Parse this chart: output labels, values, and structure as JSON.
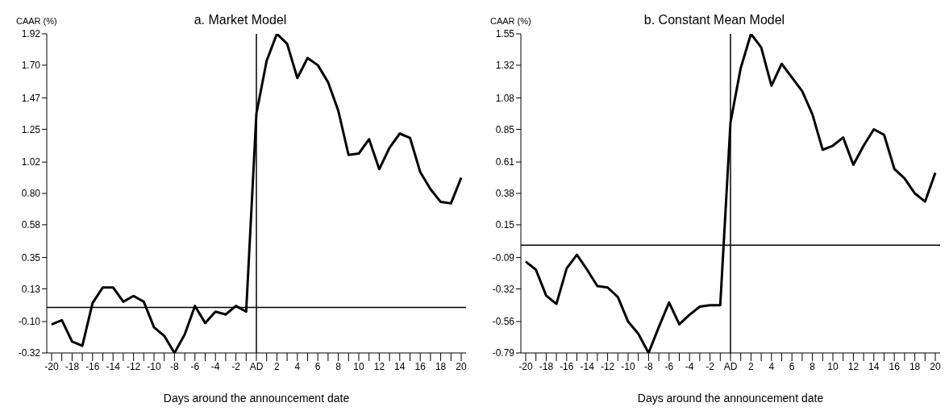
{
  "chart_data": [
    {
      "type": "line",
      "title": "a. Market Model",
      "ylabel": "CAAR (%)",
      "xlabel": "Days around the announcement date",
      "categories": [
        "-20",
        null,
        "-18",
        null,
        "-16",
        null,
        "-14",
        null,
        "-12",
        null,
        "-10",
        null,
        "-8",
        null,
        "-6",
        null,
        "-4",
        null,
        "-2",
        null,
        "AD",
        null,
        "2",
        null,
        "4",
        null,
        "6",
        null,
        "8",
        null,
        "10",
        null,
        "12",
        null,
        "14",
        null,
        "16",
        null,
        "18",
        null,
        "20"
      ],
      "series": [
        {
          "color": "#000000",
          "values": [
            -0.12,
            -0.09,
            -0.24,
            -0.27,
            0.03,
            0.14,
            0.14,
            0.04,
            0.08,
            0.04,
            -0.14,
            -0.2,
            -0.32,
            -0.19,
            0.01,
            -0.11,
            -0.03,
            -0.05,
            0.01,
            -0.03,
            1.36,
            1.73,
            1.92,
            1.85,
            1.61,
            1.75,
            1.7,
            1.58,
            1.38,
            1.07,
            1.08,
            1.18,
            0.97,
            1.12,
            1.22,
            1.19,
            0.95,
            0.83,
            0.74,
            0.73,
            0.91
          ]
        }
      ],
      "ylim": [
        -0.32,
        1.92
      ],
      "yticks": [
        -0.32,
        {
          "value": -0.1,
          "label": "-0.10"
        },
        0.13,
        0.35,
        0.58,
        {
          "value": 0.8,
          "label": "0.80"
        },
        1.02,
        1.25,
        1.47,
        {
          "value": 1.7,
          "label": "1.70"
        },
        1.92
      ],
      "ref_lines": [
        {
          "axis": "y",
          "value": 0,
          "color": "#000000"
        },
        {
          "axis": "x",
          "value": "AD",
          "color": "#000000"
        }
      ],
      "grid": false,
      "legend": false,
      "marker": "none",
      "line_style": "solid"
    },
    {
      "type": "line",
      "title": "b. Constant Mean Model",
      "ylabel": "CAAR (%)",
      "xlabel": "Days around the announcement date",
      "categories": [
        "-20",
        null,
        "-18",
        null,
        "-16",
        null,
        "-14",
        null,
        "-12",
        null,
        "-10",
        null,
        "-8",
        null,
        "-6",
        null,
        "-4",
        null,
        "-2",
        null,
        "AD",
        null,
        "2",
        null,
        "4",
        null,
        "6",
        null,
        "8",
        null,
        "10",
        null,
        "12",
        null,
        "14",
        null,
        "16",
        null,
        "18",
        null,
        "20"
      ],
      "series": [
        {
          "color": "#000000",
          "values": [
            -0.12,
            -0.18,
            -0.37,
            -0.43,
            -0.17,
            -0.07,
            -0.18,
            -0.3,
            -0.31,
            -0.38,
            -0.56,
            -0.65,
            -0.79,
            -0.6,
            -0.42,
            -0.58,
            -0.51,
            -0.45,
            -0.44,
            -0.44,
            0.9,
            1.3,
            1.55,
            1.45,
            1.17,
            1.33,
            1.23,
            1.13,
            0.96,
            0.7,
            0.73,
            0.79,
            0.59,
            0.73,
            0.85,
            0.81,
            0.56,
            0.49,
            0.38,
            0.32,
            0.53
          ]
        }
      ],
      "ylim": [
        -0.79,
        1.55
      ],
      "yticks": [
        -0.79,
        -0.56,
        -0.32,
        -0.09,
        0.15,
        0.38,
        0.61,
        0.85,
        1.08,
        1.32,
        1.55
      ],
      "ref_lines": [
        {
          "axis": "y",
          "value": 0,
          "color": "#000000"
        },
        {
          "axis": "x",
          "value": "AD",
          "color": "#000000"
        }
      ],
      "grid": false,
      "legend": false,
      "marker": "none",
      "line_style": "solid"
    }
  ]
}
